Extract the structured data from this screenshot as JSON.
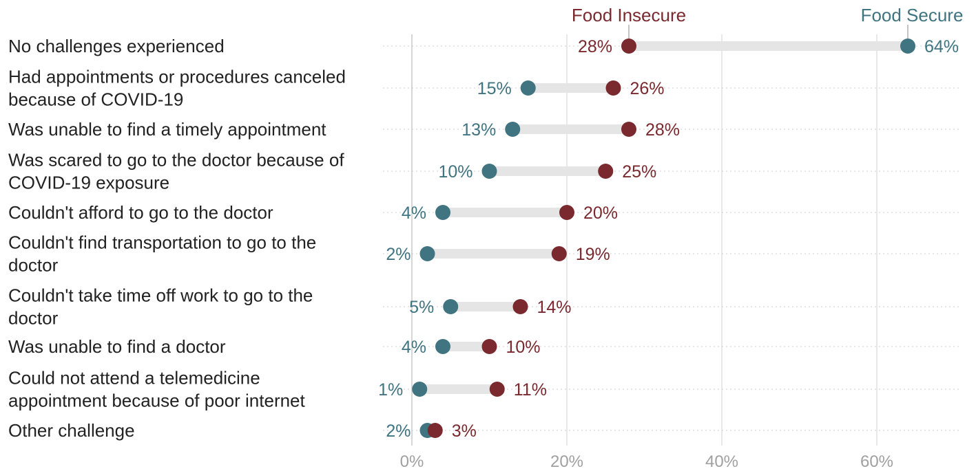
{
  "chart_data": {
    "type": "dumbbell",
    "title": "",
    "xlabel": "",
    "ylabel": "",
    "xlim": [
      0,
      70
    ],
    "x_ticks": [
      0,
      20,
      40,
      60
    ],
    "x_tick_labels": [
      "0%",
      "20%",
      "40%",
      "60%"
    ],
    "grid": true,
    "legend_placement": "top, labels on first row",
    "colors": {
      "food_insecure": "#7a2a2e",
      "food_secure": "#3f7480",
      "connector": "#e5e5e5"
    },
    "series": [
      {
        "name": "Food Insecure",
        "color": "#7a2a2e",
        "values": [
          28,
          26,
          28,
          25,
          20,
          19,
          14,
          10,
          11,
          3
        ]
      },
      {
        "name": "Food Secure",
        "color": "#3f7480",
        "values": [
          64,
          15,
          13,
          10,
          4,
          2,
          5,
          4,
          1,
          2
        ]
      }
    ],
    "categories": [
      {
        "lines": [
          "No challenges experienced"
        ],
        "insecure_label": "28%",
        "secure_label": "64%"
      },
      {
        "lines": [
          "Had appointments or procedures canceled",
          "because of COVID-19"
        ],
        "insecure_label": "26%",
        "secure_label": "15%"
      },
      {
        "lines": [
          "Was unable to find a timely appointment"
        ],
        "insecure_label": "28%",
        "secure_label": "13%"
      },
      {
        "lines": [
          "Was scared to go to the doctor because of",
          "COVID-19 exposure"
        ],
        "insecure_label": "25%",
        "secure_label": "10%"
      },
      {
        "lines": [
          "Couldn't afford to go to the doctor"
        ],
        "insecure_label": "20%",
        "secure_label": "4%"
      },
      {
        "lines": [
          "Couldn't find transportation to go to the",
          "doctor"
        ],
        "insecure_label": "19%",
        "secure_label": "2%"
      },
      {
        "lines": [
          "Couldn't take time off work to go to the",
          "doctor"
        ],
        "insecure_label": "14%",
        "secure_label": "5%"
      },
      {
        "lines": [
          "Was unable to find a doctor"
        ],
        "insecure_label": "10%",
        "secure_label": "4%"
      },
      {
        "lines": [
          "Could not attend a telemedicine",
          "appointment because of poor internet"
        ],
        "insecure_label": "11%",
        "secure_label": "1%"
      },
      {
        "lines": [
          "Other challenge"
        ],
        "insecure_label": "3%",
        "secure_label": "2%"
      }
    ]
  }
}
